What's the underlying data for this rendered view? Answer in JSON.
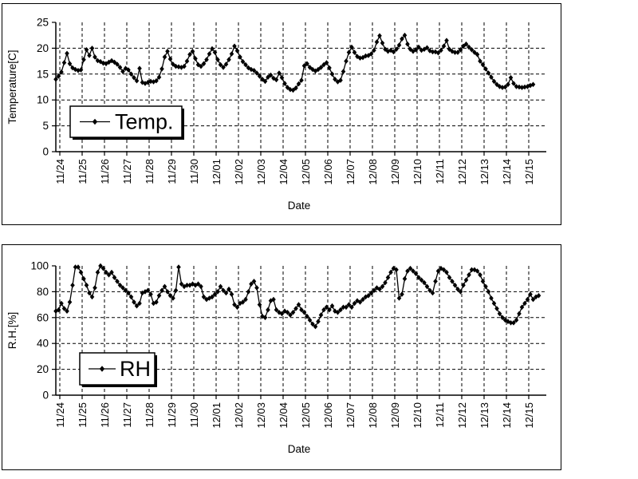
{
  "page": {
    "background": "#ffffff",
    "frame_border_color": "#000000",
    "plot_color": "#000000"
  },
  "chart_data": [
    {
      "type": "line",
      "name": "temperature-chart",
      "ylabel": "Temperature[C]",
      "xlabel": "Date",
      "legend": "Temp.",
      "legend_position": "inner-left",
      "marker": "diamond",
      "line_color": "#000000",
      "grid": true,
      "ylim": [
        0,
        25
      ],
      "yticks": [
        0,
        5,
        10,
        15,
        20,
        25
      ],
      "ygridlines": [
        5,
        10,
        15,
        20
      ],
      "x_tick_labels": [
        "11/24",
        "11/25",
        "11/26",
        "11/27",
        "11/28",
        "11/29",
        "11/30",
        "12/01",
        "12/02",
        "12/03",
        "12/04",
        "12/05",
        "12/06",
        "12/07",
        "12/08",
        "12/09",
        "12/10",
        "12/11",
        "12/12",
        "12/13",
        "12/14",
        "12/15"
      ],
      "points_per_day": 8,
      "values": [
        14.0,
        14.6,
        15.4,
        17.2,
        19.0,
        17.0,
        16.2,
        15.9,
        15.7,
        15.8,
        17.8,
        19.7,
        18.6,
        20.0,
        18.3,
        17.6,
        17.4,
        17.1,
        17.0,
        17.3,
        17.6,
        17.3,
        16.9,
        16.3,
        15.5,
        16.1,
        15.8,
        15.0,
        14.3,
        13.7,
        16.1,
        13.4,
        13.2,
        13.4,
        13.6,
        13.5,
        13.7,
        14.4,
        16.0,
        18.3,
        19.4,
        17.9,
        16.9,
        16.5,
        16.4,
        16.3,
        16.5,
        17.5,
        18.8,
        19.4,
        18.0,
        16.8,
        16.5,
        17.0,
        17.8,
        18.9,
        19.9,
        19.2,
        17.8,
        16.8,
        16.3,
        16.9,
        17.8,
        18.9,
        20.4,
        19.5,
        18.3,
        17.4,
        16.8,
        16.2,
        15.9,
        15.7,
        15.2,
        14.6,
        14.0,
        13.6,
        14.4,
        14.8,
        14.2,
        13.9,
        15.2,
        14.3,
        13.2,
        12.4,
        12.0,
        11.9,
        12.3,
        13.1,
        13.8,
        16.6,
        17.0,
        16.3,
        15.9,
        15.6,
        15.9,
        16.3,
        16.8,
        17.2,
        16.2,
        15.0,
        14.0,
        13.5,
        13.8,
        15.5,
        17.5,
        19.2,
        20.2,
        19.2,
        18.4,
        18.1,
        18.2,
        18.5,
        18.6,
        18.9,
        19.6,
        21.2,
        22.4,
        21.0,
        19.8,
        19.4,
        19.6,
        19.3,
        19.8,
        20.6,
        21.8,
        22.5,
        20.8,
        19.8,
        19.4,
        19.7,
        20.2,
        19.6,
        19.8,
        20.1,
        19.5,
        19.3,
        19.3,
        19.1,
        19.6,
        20.4,
        21.5,
        19.8,
        19.4,
        19.2,
        19.2,
        19.7,
        20.4,
        20.8,
        20.2,
        19.7,
        19.2,
        18.8,
        17.5,
        16.8,
        16.0,
        15.2,
        14.4,
        13.6,
        13.0,
        12.6,
        12.4,
        12.5,
        13.0,
        14.3,
        13.2,
        12.6,
        12.5,
        12.4,
        12.5,
        12.6,
        12.8,
        13.0
      ]
    },
    {
      "type": "line",
      "name": "humidity-chart",
      "ylabel": "R.H.[%]",
      "xlabel": "Date",
      "legend": "RH",
      "legend_position": "inner-left",
      "marker": "diamond",
      "line_color": "#000000",
      "grid": true,
      "ylim": [
        0,
        100
      ],
      "yticks": [
        0,
        20,
        40,
        60,
        80,
        100
      ],
      "ygridlines": [
        20,
        40,
        60,
        80
      ],
      "x_tick_labels": [
        "11/24",
        "11/25",
        "11/26",
        "11/27",
        "11/28",
        "11/29",
        "11/30",
        "12/01",
        "12/02",
        "12/03",
        "12/04",
        "12/05",
        "12/06",
        "12/07",
        "12/08",
        "12/09",
        "12/10",
        "12/11",
        "12/12",
        "12/13",
        "12/14",
        "12/15"
      ],
      "points_per_day": 8,
      "values": [
        65,
        66,
        71,
        67,
        65,
        72,
        85,
        99,
        99,
        95,
        90,
        85,
        79,
        76,
        83,
        95,
        100,
        98,
        95,
        93,
        95,
        91,
        88,
        85,
        83,
        81,
        79,
        76,
        72,
        69,
        71,
        79,
        80,
        81,
        78,
        71,
        72,
        77,
        81,
        84,
        80,
        77,
        75,
        81,
        99,
        86,
        84,
        85,
        85,
        86,
        85,
        86,
        84,
        76,
        74,
        75,
        76,
        78,
        80,
        84,
        81,
        79,
        82,
        78,
        70,
        68,
        71,
        72,
        74,
        80,
        86,
        88,
        83,
        70,
        61,
        60,
        66,
        73,
        74,
        66,
        64,
        63,
        65,
        64,
        62,
        64,
        67,
        70,
        66,
        64,
        61,
        58,
        55,
        53,
        57,
        62,
        66,
        68,
        66,
        69,
        65,
        64,
        66,
        68,
        68,
        70,
        68,
        71,
        73,
        72,
        74,
        76,
        77,
        79,
        81,
        83,
        82,
        84,
        87,
        91,
        95,
        98,
        97,
        75,
        78,
        90,
        96,
        98,
        96,
        94,
        91,
        89,
        87,
        84,
        81,
        79,
        88,
        96,
        98,
        97,
        95,
        91,
        88,
        85,
        82,
        80,
        85,
        89,
        93,
        97,
        97,
        96,
        93,
        88,
        84,
        80,
        75,
        71,
        67,
        63,
        60,
        58,
        57,
        56,
        56,
        58,
        63,
        68,
        71,
        74,
        78,
        74,
        76,
        77
      ]
    }
  ]
}
